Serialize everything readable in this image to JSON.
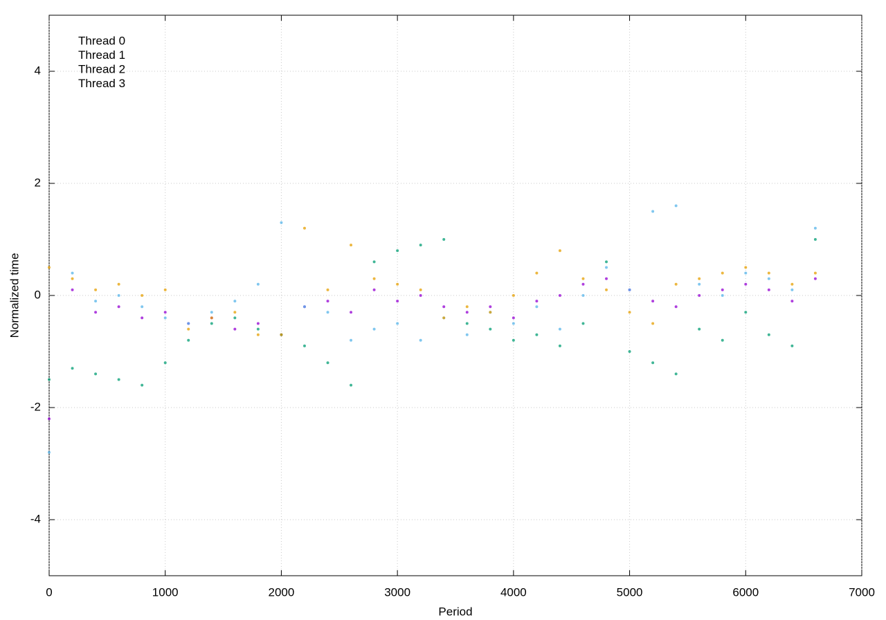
{
  "chart_data": {
    "type": "scatter",
    "x_label": "Period",
    "y_label": "Normalized time",
    "xlim": [
      0,
      7000
    ],
    "xticks": [
      0,
      1000,
      2000,
      3000,
      4000,
      5000,
      6000,
      7000
    ],
    "ylim": [
      -5,
      5
    ],
    "yticks": [
      -4,
      -2,
      0,
      2,
      4
    ],
    "grid": true,
    "legend": "top-left",
    "x": [
      0,
      200,
      400,
      600,
      800,
      1000,
      1200,
      1400,
      1600,
      1800,
      2000,
      2200,
      2400,
      2600,
      2800,
      3000,
      3200,
      3400,
      3600,
      3800,
      4000,
      4200,
      4400,
      4600,
      4800,
      5000,
      5200,
      5400,
      5600,
      5800,
      6000,
      6200,
      6400,
      6600
    ],
    "series": [
      {
        "name": "Thread 0",
        "color": "#9400d3",
        "values": [
          -2.2,
          0.1,
          -0.3,
          -0.2,
          -0.4,
          -0.3,
          -0.5,
          -0.4,
          -0.6,
          -0.5,
          -0.7,
          -0.2,
          -0.1,
          -0.3,
          0.1,
          -0.1,
          0.0,
          -0.2,
          -0.3,
          -0.2,
          -0.4,
          -0.1,
          0.0,
          0.2,
          0.3,
          0.1,
          -0.1,
          -0.2,
          0.0,
          0.1,
          0.2,
          0.1,
          -0.1,
          0.3
        ]
      },
      {
        "name": "Thread 1",
        "color": "#009e73",
        "values": [
          -1.5,
          -1.3,
          -1.4,
          -1.5,
          -1.6,
          -1.2,
          -0.8,
          -0.5,
          -0.4,
          -0.6,
          -0.7,
          -0.9,
          -1.2,
          -1.6,
          0.6,
          0.8,
          0.9,
          1.0,
          -0.5,
          -0.6,
          -0.8,
          -0.7,
          -0.9,
          -0.5,
          0.6,
          -1.0,
          -1.2,
          -1.4,
          -0.6,
          -0.8,
          -0.3,
          -0.7,
          -0.9,
          1.0
        ]
      },
      {
        "name": "Thread 2",
        "color": "#56b4e9",
        "values": [
          -2.8,
          0.4,
          -0.1,
          0.0,
          -0.2,
          -0.4,
          -0.5,
          -0.3,
          -0.1,
          0.2,
          1.3,
          -0.2,
          -0.3,
          -0.8,
          -0.6,
          -0.5,
          -0.8,
          -0.4,
          -0.7,
          -0.3,
          -0.5,
          -0.2,
          -0.6,
          0.0,
          0.5,
          0.1,
          1.5,
          1.6,
          0.2,
          0.0,
          0.4,
          0.3,
          0.1,
          1.2
        ]
      },
      {
        "name": "Thread 3",
        "color": "#e69f00",
        "values": [
          0.5,
          0.3,
          0.1,
          0.2,
          0.0,
          0.1,
          -0.6,
          -0.4,
          -0.3,
          -0.7,
          -0.7,
          1.2,
          0.1,
          0.9,
          0.3,
          0.2,
          0.1,
          -0.4,
          -0.2,
          -0.3,
          0.0,
          0.4,
          0.8,
          0.3,
          0.1,
          -0.3,
          -0.5,
          0.2,
          0.3,
          0.4,
          0.5,
          0.4,
          0.2,
          0.4
        ]
      }
    ]
  }
}
